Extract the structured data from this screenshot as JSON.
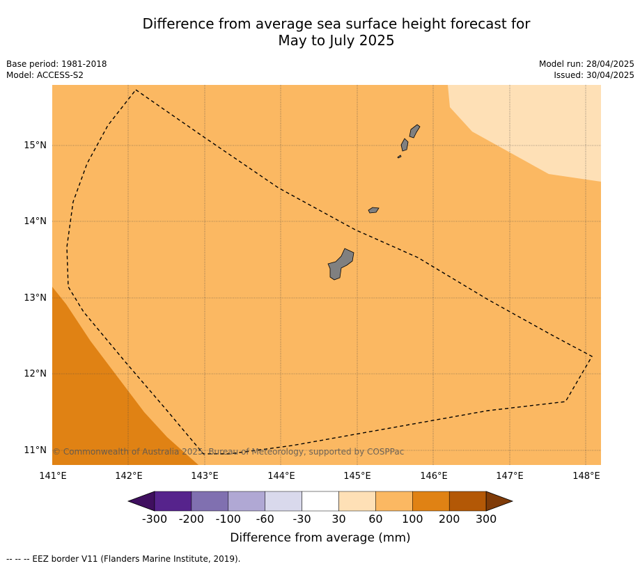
{
  "title_line1": "Difference from average sea surface height forecast for",
  "title_line2": "May to July 2025",
  "base_period": "Base period: 1981-2018",
  "model": "Model: ACCESS-S2",
  "model_run": "Model run: 28/04/2025",
  "issued": "Issued: 30/04/2025",
  "copyright": "© Commonwealth of Australia 2025, Bureau of Meteorology, supported by COSPPac",
  "lat_labels": [
    "15°N",
    "14°N",
    "13°N",
    "12°N",
    "11°N"
  ],
  "lon_labels": [
    "141°E",
    "142°E",
    "143°E",
    "144°E",
    "145°E",
    "146°E",
    "147°E",
    "148°E"
  ],
  "colorbar": {
    "title": "Difference from average (mm)",
    "ticks": [
      "-300",
      "-200",
      "-100",
      "-60",
      "-30",
      "30",
      "60",
      "100",
      "200",
      "300"
    ],
    "colors": [
      "#3f0f5f",
      "#56238c",
      "#8070b0",
      "#b0a8d4",
      "#d9d9ec",
      "#ffffff",
      "#fee0b6",
      "#fbb862",
      "#e08214",
      "#b35806",
      "#7f3b08"
    ]
  },
  "footnote": "--  --  -- EEZ border V11 (Flanders Marine Institute, 2019).",
  "colors": {
    "zone_30_60": "#fee0b6",
    "zone_60_100": "#fbb862",
    "zone_100_200": "#e08214",
    "land": "#808080"
  },
  "icons": [
    "island-shape",
    "eez-border-line"
  ]
}
